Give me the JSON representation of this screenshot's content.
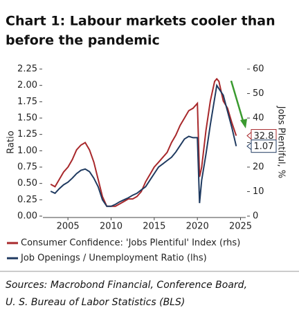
{
  "chart_data": {
    "type": "line",
    "title": "Chart 1: Labour markets cooler than before the pandemic",
    "y_label": "Ratio",
    "y2_label": "Jobs Plentiful, %",
    "sources": "Sources: Macrobond Financial, Conference Board, U. S. Bureau of Labor Statistics (BLS)",
    "x": [
      2003,
      2003.5,
      2004,
      2004.5,
      2005,
      2005.5,
      2006,
      2006.5,
      2007,
      2007.5,
      2008,
      2008.5,
      2009,
      2009.5,
      2010,
      2010.5,
      2011,
      2011.5,
      2012,
      2012.5,
      2013,
      2013.5,
      2014,
      2014.5,
      2015,
      2015.5,
      2016,
      2016.5,
      2017,
      2017.5,
      2018,
      2018.5,
      2019,
      2019.5,
      2020,
      2020.25,
      2020.5,
      2021,
      2021.5,
      2022,
      2022.25,
      2022.5,
      2023,
      2023.5,
      2024,
      2024.5
    ],
    "series": [
      {
        "name": "Consumer Confidence: 'Jobs Plentiful' Index (rhs)",
        "color": "#a8282b",
        "axis": "y2",
        "end_label": 32.8,
        "values": [
          13,
          12,
          15,
          18,
          20,
          23,
          27,
          29,
          30,
          27,
          22,
          15,
          8,
          4,
          4,
          4,
          5,
          6,
          7,
          7,
          8,
          10,
          14,
          17,
          20,
          22,
          24,
          26,
          30,
          33,
          37,
          40,
          43,
          44,
          46,
          16,
          20,
          35,
          47,
          55,
          56,
          55,
          47,
          44,
          38,
          32.8
        ]
      },
      {
        "name": "Job Openings / Unemployment Ratio (lhs)",
        "color": "#1f3a60",
        "end_label": 1.07,
        "values": [
          0.38,
          0.35,
          0.42,
          0.48,
          0.52,
          0.58,
          0.65,
          0.7,
          0.72,
          0.68,
          0.58,
          0.45,
          0.25,
          0.15,
          0.15,
          0.18,
          0.22,
          0.25,
          0.28,
          0.32,
          0.35,
          0.4,
          0.45,
          0.55,
          0.65,
          0.75,
          0.8,
          0.85,
          0.9,
          0.98,
          1.08,
          1.18,
          1.22,
          1.2,
          1.2,
          0.2,
          0.55,
          0.95,
          1.4,
          1.8,
          2.0,
          1.95,
          1.85,
          1.6,
          1.35,
          1.07
        ]
      }
    ],
    "xlim": [
      2002.1,
      2025.6
    ],
    "xticks": [
      2005,
      2010,
      2015,
      2020,
      2025
    ],
    "ylim": [
      0,
      2.25
    ],
    "yticks": [
      {
        "value": 0,
        "label": "0.00"
      },
      0.25,
      {
        "value": 0.5,
        "label": "0.50"
      },
      0.75,
      {
        "value": 1,
        "label": "1.00"
      },
      1.25,
      {
        "value": 1.5,
        "label": "1.50"
      },
      1.75,
      {
        "value": 2,
        "label": "2.00"
      },
      2.25
    ],
    "y2lim": [
      0,
      60
    ],
    "y2ticks": [
      0,
      10,
      20,
      30,
      40,
      50,
      60
    ]
  }
}
